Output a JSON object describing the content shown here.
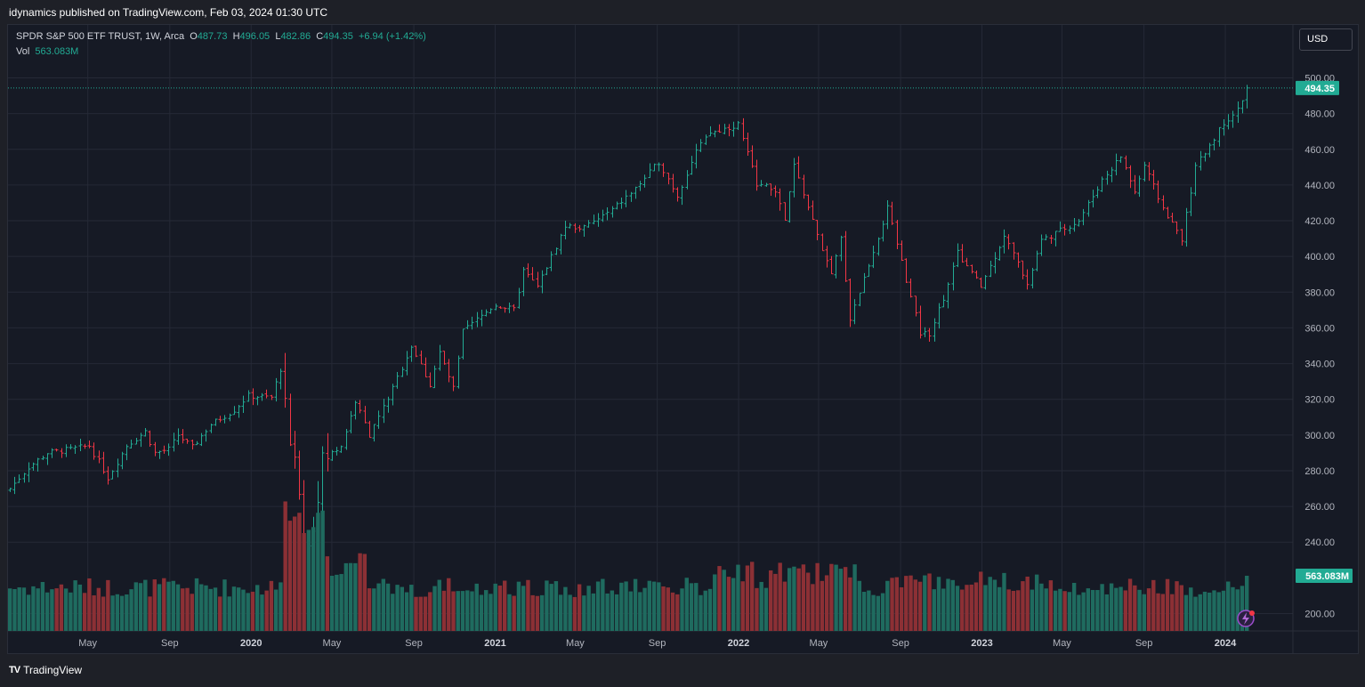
{
  "publisher": "idynamics published on TradingView.com, Feb 03, 2024 01:30 UTC",
  "legend": {
    "symbol": "SPDR S&P 500 ETF TRUST, 1W, Arca",
    "o_label": "O",
    "o": "487.73",
    "h_label": "H",
    "h": "496.05",
    "l_label": "L",
    "l": "482.86",
    "c_label": "C",
    "c": "494.35",
    "change": "+6.94 (+1.42%)",
    "vol_label": "Vol",
    "vol": "563.083M"
  },
  "currency": "USD",
  "footer": {
    "brand": "TradingView",
    "logo": "TV"
  },
  "colors": {
    "up": "#22ab94",
    "down": "#f23645",
    "vol_up": "#1f6b5f",
    "vol_down": "#8c3035",
    "background": "#161a25"
  },
  "chart_data": {
    "type": "ohlc",
    "interval": "1W",
    "ylim": [
      190,
      505
    ],
    "y_ticks": [
      "200.00",
      "240.00",
      "260.00",
      "280.00",
      "300.00",
      "320.00",
      "340.00",
      "360.00",
      "380.00",
      "400.00",
      "420.00",
      "440.00",
      "460.00",
      "480.00",
      "500.00"
    ],
    "x_labels": [
      "May",
      "Sep",
      "2020",
      "May",
      "Sep",
      "2021",
      "May",
      "Sep",
      "2022",
      "May",
      "Sep",
      "2023",
      "May",
      "Sep",
      "2024"
    ],
    "last_price": "494.35",
    "last_volume": "563.083M",
    "anchors": [
      [
        "2019-01-04",
        270
      ],
      [
        "2019-02-01",
        282
      ],
      [
        "2019-03-01",
        290
      ],
      [
        "2019-04-05",
        292
      ],
      [
        "2019-05-03",
        294
      ],
      [
        "2019-05-31",
        276
      ],
      [
        "2019-06-28",
        294
      ],
      [
        "2019-07-26",
        302
      ],
      [
        "2019-08-09",
        290
      ],
      [
        "2019-08-30",
        292
      ],
      [
        "2019-09-13",
        300
      ],
      [
        "2019-10-04",
        293
      ],
      [
        "2019-11-01",
        306
      ],
      [
        "2019-12-06",
        314
      ],
      [
        "2019-12-27",
        322
      ],
      [
        "2020-01-31",
        321
      ],
      [
        "2020-02-14",
        337
      ],
      [
        "2020-02-28",
        296
      ],
      [
        "2020-03-13",
        270
      ],
      [
        "2020-03-20",
        228
      ],
      [
        "2020-04-03",
        248
      ],
      [
        "2020-04-17",
        286
      ],
      [
        "2020-05-15",
        294
      ],
      [
        "2020-06-05",
        319
      ],
      [
        "2020-06-26",
        300
      ],
      [
        "2020-07-31",
        326
      ],
      [
        "2020-08-28",
        350
      ],
      [
        "2020-09-25",
        328
      ],
      [
        "2020-10-09",
        346
      ],
      [
        "2020-10-30",
        326
      ],
      [
        "2020-11-13",
        358
      ],
      [
        "2020-12-31",
        373
      ],
      [
        "2021-01-29",
        370
      ],
      [
        "2021-02-12",
        392
      ],
      [
        "2021-03-05",
        383
      ],
      [
        "2021-04-16",
        417
      ],
      [
        "2021-05-14",
        416
      ],
      [
        "2021-06-25",
        426
      ],
      [
        "2021-07-30",
        438
      ],
      [
        "2021-09-03",
        453
      ],
      [
        "2021-10-01",
        434
      ],
      [
        "2021-10-29",
        459
      ],
      [
        "2021-11-19",
        469
      ],
      [
        "2021-12-31",
        474
      ],
      [
        "2022-01-28",
        441
      ],
      [
        "2022-02-25",
        437
      ],
      [
        "2022-03-11",
        420
      ],
      [
        "2022-03-25",
        451
      ],
      [
        "2022-04-29",
        412
      ],
      [
        "2022-05-20",
        389
      ],
      [
        "2022-06-03",
        410
      ],
      [
        "2022-06-17",
        365
      ],
      [
        "2022-07-29",
        411
      ],
      [
        "2022-08-12",
        427
      ],
      [
        "2022-09-30",
        357
      ],
      [
        "2022-10-14",
        357
      ],
      [
        "2022-11-04",
        377
      ],
      [
        "2022-11-25",
        402
      ],
      [
        "2022-12-30",
        383
      ],
      [
        "2023-01-27",
        406
      ],
      [
        "2023-02-03",
        412
      ],
      [
        "2023-03-10",
        385
      ],
      [
        "2023-03-31",
        409
      ],
      [
        "2023-05-26",
        420
      ],
      [
        "2023-06-30",
        443
      ],
      [
        "2023-07-28",
        456
      ],
      [
        "2023-08-18",
        436
      ],
      [
        "2023-09-01",
        451
      ],
      [
        "2023-09-29",
        427
      ],
      [
        "2023-10-27",
        410
      ],
      [
        "2023-11-17",
        450
      ],
      [
        "2023-12-29",
        475
      ],
      [
        "2024-01-19",
        482
      ],
      [
        "2024-02-02",
        494.35
      ]
    ]
  }
}
